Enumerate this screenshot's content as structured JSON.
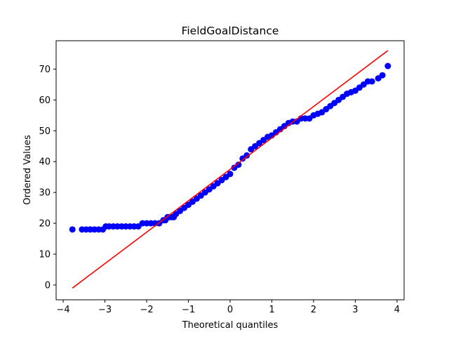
{
  "chart_data": {
    "type": "scatter",
    "title": "FieldGoalDistance",
    "xlabel": "Theoretical quantiles",
    "ylabel": "Ordered Values",
    "xlim": [
      -4.17,
      4.17
    ],
    "ylim": [
      -4.8,
      79.2
    ],
    "xticks": [
      -4,
      -3,
      -2,
      -1,
      0,
      1,
      2,
      3,
      4
    ],
    "yticks": [
      0,
      10,
      20,
      30,
      40,
      50,
      60,
      70
    ],
    "grid": false,
    "legend": "none",
    "series": [
      {
        "kind": "points",
        "color": "#0000ff",
        "x": [
          -3.78,
          -3.55,
          -3.45,
          -3.35,
          -3.25,
          -3.15,
          -3.05,
          -2.98,
          -2.9,
          -2.8,
          -2.7,
          -2.6,
          -2.5,
          -2.4,
          -2.3,
          -2.2,
          -2.1,
          -2.0,
          -1.9,
          -1.8,
          -1.7,
          -1.6,
          -1.55,
          -1.5,
          -1.45,
          -1.4,
          -1.35,
          -1.3,
          -1.2,
          -1.1,
          -1.0,
          -0.9,
          -0.8,
          -0.7,
          -0.6,
          -0.5,
          -0.4,
          -0.3,
          -0.2,
          -0.1,
          0.0,
          0.1,
          0.2,
          0.3,
          0.4,
          0.5,
          0.6,
          0.7,
          0.8,
          0.9,
          1.0,
          1.1,
          1.2,
          1.3,
          1.4,
          1.5,
          1.6,
          1.7,
          1.8,
          1.9,
          2.0,
          2.1,
          2.2,
          2.3,
          2.4,
          2.5,
          2.6,
          2.7,
          2.8,
          2.9,
          3.0,
          3.1,
          3.2,
          3.3,
          3.4,
          3.55,
          3.65,
          3.78
        ],
        "y": [
          18,
          18,
          18,
          18,
          18,
          18,
          18,
          19,
          19,
          19,
          19,
          19,
          19,
          19,
          19,
          19,
          20,
          20,
          20,
          20,
          20,
          21,
          21,
          22,
          22,
          22,
          22,
          23,
          24,
          25,
          26,
          27,
          28,
          29,
          30,
          31,
          32,
          33,
          34,
          35,
          36,
          38,
          39,
          41,
          42,
          44,
          45,
          46,
          47,
          48,
          48.5,
          49.5,
          50.5,
          51.5,
          52.5,
          53,
          53,
          54,
          54,
          54,
          55,
          55.5,
          56,
          57,
          58,
          59,
          60,
          61,
          62,
          62.5,
          63,
          64,
          65,
          66,
          66,
          67,
          68,
          71
        ]
      },
      {
        "kind": "line",
        "color": "#ff0000",
        "x": [
          -3.78,
          3.78
        ],
        "y": [
          -1,
          76
        ]
      }
    ]
  }
}
